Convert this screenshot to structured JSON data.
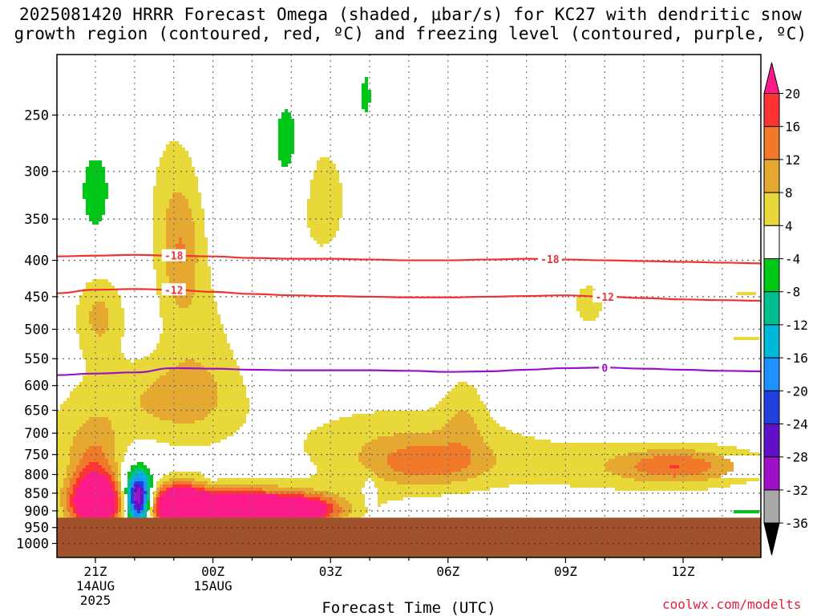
{
  "title_line1": "2025081420 HRRR Forecast Omega (shaded, μbar/s) for KC27 with dendritic snow",
  "title_line2": "growth region (contoured, red, ºC) and freezing level (contoured, purple, ºC)",
  "credit": "coolwx.com/modelts",
  "chart_data": {
    "type": "heatmap",
    "title": "2025081420 HRRR Forecast Omega (shaded, μbar/s) for KC27 with dendritic snow growth region (contoured, red, ºC) and freezing level (contoured, purple, ºC)",
    "xlabel": "Forecast Time (UTC)",
    "ylabel": "",
    "x_unit": "hours from 20Z 14 Aug 2025",
    "xlim": [
      0.0,
      18.0
    ],
    "ylim": [
      1050,
      200
    ],
    "y_scale": "log",
    "grid": true,
    "x_ticks": [
      {
        "x": 1,
        "label": "21Z",
        "sub1": "14AUG",
        "sub2": "2025"
      },
      {
        "x": 4,
        "label": "00Z",
        "sub1": "15AUG",
        "sub2": ""
      },
      {
        "x": 7,
        "label": "03Z",
        "sub1": "",
        "sub2": ""
      },
      {
        "x": 10,
        "label": "06Z",
        "sub1": "",
        "sub2": ""
      },
      {
        "x": 13,
        "label": "09Z",
        "sub1": "",
        "sub2": ""
      },
      {
        "x": 16,
        "label": "12Z",
        "sub1": "",
        "sub2": ""
      }
    ],
    "y_ticks": [
      250,
      300,
      350,
      400,
      450,
      500,
      550,
      600,
      650,
      700,
      750,
      800,
      850,
      900,
      950,
      1000
    ],
    "ground_level_hPa": 920,
    "colorbar": {
      "labels": [
        "20",
        "16",
        "12",
        "8",
        "4",
        "-4",
        "-8",
        "-12",
        "-16",
        "-20",
        "-24",
        "-28",
        "-32",
        "-36"
      ],
      "bins": [
        {
          "color": "#ff1a8c",
          "range": "> 20"
        },
        {
          "color": "#ff3333",
          "range": "16 to 20"
        },
        {
          "color": "#f07a2a",
          "range": "12 to 16"
        },
        {
          "color": "#e5a830",
          "range": "8 to 12"
        },
        {
          "color": "#e8d83a",
          "range": "4 to 8"
        },
        {
          "color": "#ffffff",
          "range": "-4 to 4"
        },
        {
          "color": "#00c816",
          "range": "-8 to -4"
        },
        {
          "color": "#00c090",
          "range": "-12 to -8"
        },
        {
          "color": "#00b8d8",
          "range": "-16 to -12"
        },
        {
          "color": "#1e90ff",
          "range": "-20 to -16"
        },
        {
          "color": "#2040e0",
          "range": "-24 to -20"
        },
        {
          "color": "#6010c8",
          "range": "-28 to -24"
        },
        {
          "color": "#a010c8",
          "range": "-32 to -28"
        },
        {
          "color": "#a8a8a8",
          "range": "-36 to -32"
        },
        {
          "color": "#000000",
          "range": "< -36"
        }
      ]
    },
    "contours": [
      {
        "label": "-18",
        "color": "#ee3333",
        "label_x": [
          3.0,
          12.6
        ],
        "points": [
          [
            0,
            395
          ],
          [
            1,
            394
          ],
          [
            2,
            393
          ],
          [
            3,
            394
          ],
          [
            4,
            395
          ],
          [
            5,
            397
          ],
          [
            6,
            398
          ],
          [
            7,
            398
          ],
          [
            8,
            399
          ],
          [
            9,
            400
          ],
          [
            10,
            400
          ],
          [
            11,
            399
          ],
          [
            12,
            398
          ],
          [
            13,
            399
          ],
          [
            14,
            400
          ],
          [
            15,
            401
          ],
          [
            16,
            402
          ],
          [
            17,
            403
          ],
          [
            18,
            404
          ]
        ]
      },
      {
        "label": "-12",
        "color": "#ee3333",
        "label_x": [
          3.0,
          14.0
        ],
        "points": [
          [
            0,
            445
          ],
          [
            1,
            440
          ],
          [
            2,
            439
          ],
          [
            3,
            440
          ],
          [
            4,
            443
          ],
          [
            5,
            446
          ],
          [
            6,
            448
          ],
          [
            7,
            449
          ],
          [
            8,
            450
          ],
          [
            9,
            451
          ],
          [
            10,
            451
          ],
          [
            11,
            450
          ],
          [
            12,
            449
          ],
          [
            13,
            448
          ],
          [
            14,
            450
          ],
          [
            15,
            452
          ],
          [
            16,
            454
          ],
          [
            17,
            455
          ],
          [
            18,
            456
          ]
        ]
      },
      {
        "label": "0",
        "color": "#9a12c8",
        "label_x": [
          14.0
        ],
        "points": [
          [
            0,
            580
          ],
          [
            1,
            577
          ],
          [
            2,
            575
          ],
          [
            3,
            567
          ],
          [
            4,
            568
          ],
          [
            5,
            570
          ],
          [
            6,
            571
          ],
          [
            7,
            571
          ],
          [
            8,
            571
          ],
          [
            9,
            572
          ],
          [
            10,
            574
          ],
          [
            11,
            573
          ],
          [
            12,
            570
          ],
          [
            13,
            567
          ],
          [
            14,
            566
          ],
          [
            15,
            568
          ],
          [
            16,
            570
          ],
          [
            17,
            572
          ],
          [
            18,
            573
          ]
        ]
      }
    ]
  }
}
